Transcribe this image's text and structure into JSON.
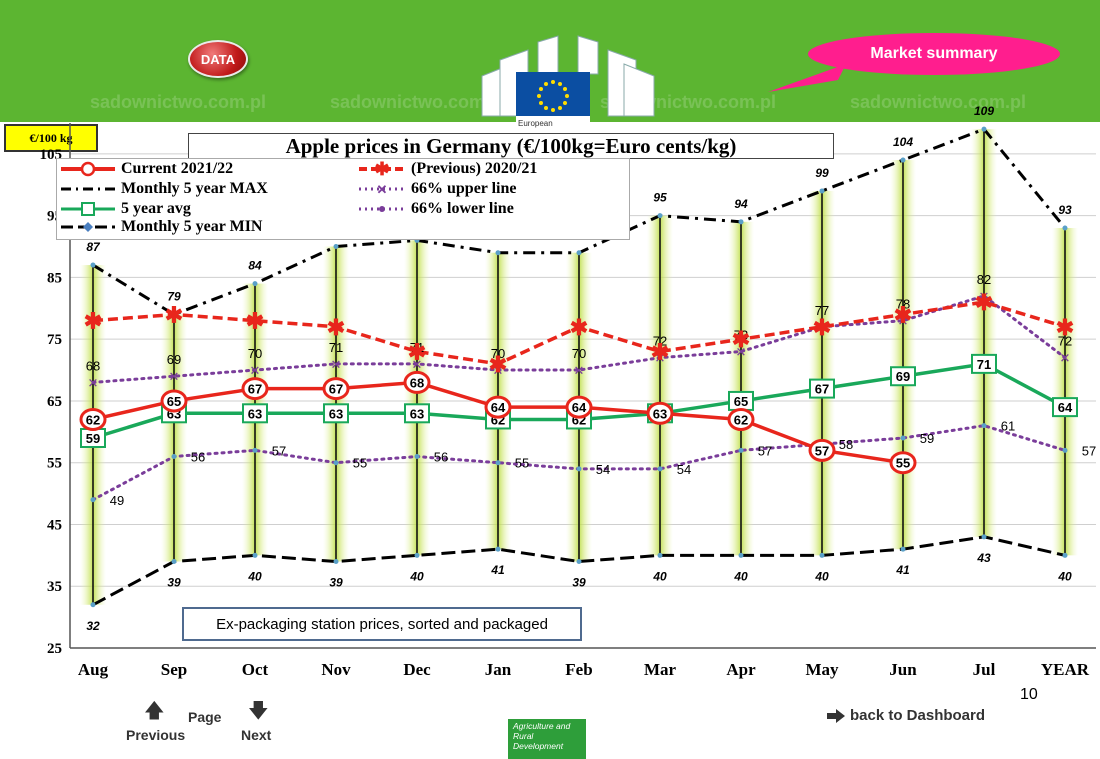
{
  "header": {
    "data_label": "DATA",
    "market_label": "Market summary",
    "eu_label": "European"
  },
  "unit_badge": "€/100 kg",
  "note": "Ex-packaging station prices, sorted and packaged",
  "page": {
    "number": "10",
    "page_label": "Page",
    "previous_label": "Previous",
    "next_label": "Next",
    "back_label": "back to Dashboard",
    "agri_label": "Agriculture and Rural Development"
  },
  "watermark": "sadownictwo.com.pl",
  "chart_data": {
    "type": "line",
    "title": "Apple prices in Germany (€/100kg=Euro cents/kg)",
    "categories": [
      "Aug",
      "Sep",
      "Oct",
      "Nov",
      "Dec",
      "Jan",
      "Feb",
      "Mar",
      "Apr",
      "May",
      "Jun",
      "Jul",
      "YEAR"
    ],
    "ylim": [
      25,
      110
    ],
    "yticks": [
      25,
      35,
      45,
      55,
      65,
      75,
      85,
      95,
      105
    ],
    "legend_position": "top-left",
    "series": [
      {
        "name": "Current 2021/22",
        "color": "#e8261c",
        "values": [
          62,
          65,
          67,
          67,
          68,
          64,
          64,
          63,
          62,
          57,
          55,
          null,
          null
        ],
        "labels": [
          "62",
          "65",
          "67",
          "67",
          "68",
          "64",
          "64",
          "63",
          "62",
          "57",
          "55",
          "",
          ""
        ]
      },
      {
        "name": "(Previous) 2020/21",
        "color": "#e8261c",
        "values": [
          78,
          79,
          78,
          77,
          73,
          71,
          77,
          73,
          75,
          77,
          79,
          81,
          77
        ],
        "labels": [
          "",
          "",
          "",
          "",
          "",
          "",
          "",
          "",
          "",
          "",
          "",
          "",
          ""
        ]
      },
      {
        "name": "Monthly 5 year MAX",
        "color": "#000000",
        "values": [
          87,
          79,
          84,
          90,
          91,
          89,
          89,
          95,
          94,
          99,
          104,
          109,
          93
        ],
        "labels": [
          "87",
          "79",
          "84",
          "90",
          "91",
          "89",
          "89",
          "95",
          "94",
          "99",
          "104",
          "109",
          "93"
        ]
      },
      {
        "name": "66% upper line",
        "color": "#7a3d9a",
        "values": [
          68,
          69,
          70,
          71,
          71,
          70,
          70,
          72,
          73,
          77,
          78,
          82,
          72
        ],
        "labels": [
          "68",
          "69",
          "70",
          "71",
          "71",
          "70",
          "70",
          "72",
          "73",
          "77",
          "78",
          "82",
          "72"
        ]
      },
      {
        "name": "5 year avg",
        "color": "#19a85a",
        "values": [
          59,
          63,
          63,
          63,
          63,
          62,
          62,
          63,
          65,
          67,
          69,
          71,
          64
        ],
        "labels": [
          "59",
          "63",
          "63",
          "63",
          "63",
          "62",
          "62",
          "63",
          "65",
          "67",
          "69",
          "71",
          "64"
        ]
      },
      {
        "name": "66% lower line",
        "color": "#7a3d9a",
        "values": [
          49,
          56,
          57,
          55,
          56,
          55,
          54,
          54,
          57,
          58,
          59,
          61,
          57
        ],
        "labels": [
          "49",
          "56",
          "57",
          "55",
          "56",
          "55",
          "54",
          "54",
          "57",
          "58",
          "59",
          "61",
          "57"
        ]
      },
      {
        "name": "Monthly 5 year MIN",
        "color": "#000000",
        "values": [
          32,
          39,
          40,
          39,
          40,
          41,
          39,
          40,
          40,
          40,
          41,
          43,
          40
        ],
        "labels": [
          "32",
          "39",
          "40",
          "39",
          "40",
          "41",
          "39",
          "40",
          "40",
          "40",
          "41",
          "43",
          "40"
        ]
      }
    ]
  }
}
